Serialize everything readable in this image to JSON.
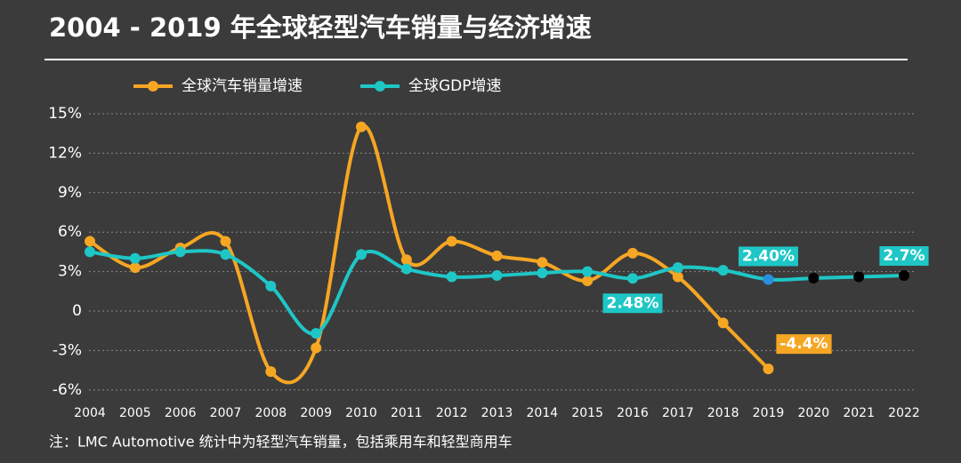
{
  "chart_data": {
    "type": "line",
    "title": "2004 - 2019 年全球轻型汽车销量与经济增速",
    "footnote": "注：LMC Automotive 统计中为轻型汽车销量，包括乘用车和轻型商用车",
    "categories": [
      "2004",
      "2005",
      "2006",
      "2007",
      "2008",
      "2009",
      "2010",
      "2011",
      "2012",
      "2013",
      "2014",
      "2015",
      "2016",
      "2017",
      "2018",
      "2019",
      "2020",
      "2021",
      "2022"
    ],
    "series": [
      {
        "name": "全球汽车销量增速",
        "color": "#f5a623",
        "values": [
          5.3,
          3.3,
          4.8,
          5.3,
          -4.6,
          -2.8,
          14.0,
          3.9,
          5.3,
          4.2,
          3.7,
          2.3,
          4.4,
          2.6,
          -0.9,
          -4.4,
          null,
          null,
          null
        ],
        "value_labels": [
          null,
          null,
          null,
          null,
          null,
          null,
          null,
          null,
          null,
          null,
          null,
          null,
          null,
          null,
          null,
          "-4.4%",
          null,
          null,
          null
        ]
      },
      {
        "name": "全球GDP增速",
        "color": "#1fc6c6",
        "values": [
          4.5,
          4.0,
          4.5,
          4.3,
          1.9,
          -1.7,
          4.3,
          3.2,
          2.6,
          2.7,
          2.9,
          3.0,
          2.48,
          3.3,
          3.1,
          2.4,
          2.5,
          2.6,
          2.7
        ],
        "value_labels": [
          null,
          null,
          null,
          null,
          null,
          null,
          null,
          null,
          null,
          null,
          null,
          null,
          "2.48%",
          null,
          null,
          "2.40%",
          null,
          null,
          "2.7%"
        ],
        "marker_colors": [
          null,
          null,
          null,
          null,
          null,
          null,
          null,
          null,
          null,
          null,
          null,
          null,
          null,
          null,
          null,
          "#2b8fe0",
          "#000000",
          "#000000",
          "#000000"
        ]
      }
    ],
    "ylim": [
      -6,
      15
    ],
    "yticks": [
      {
        "value": -6,
        "label": "-6%"
      },
      {
        "value": -3,
        "label": "-3%"
      },
      0,
      {
        "value": 3,
        "label": "3%"
      },
      {
        "value": 6,
        "label": "6%"
      },
      {
        "value": 9,
        "label": "9%"
      },
      {
        "value": 12,
        "label": "12%"
      },
      {
        "value": 15,
        "label": "15%"
      }
    ],
    "grid": true,
    "legend": "top"
  }
}
